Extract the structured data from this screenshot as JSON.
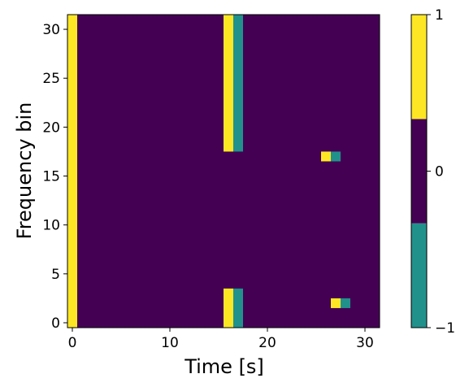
{
  "chart_data": {
    "type": "heatmap",
    "xlabel": "Time [s]",
    "ylabel": "Frequency bin",
    "x_ticks": [
      "0",
      "10",
      "20",
      "30"
    ],
    "y_ticks": [
      "0",
      "5",
      "10",
      "15",
      "20",
      "25",
      "30"
    ],
    "xlim": [
      -0.5,
      31.5
    ],
    "ylim": [
      -0.5,
      31.5
    ],
    "colorbar": {
      "ticks": [
        "−1",
        "0",
        "1"
      ],
      "levels": [
        -1,
        0,
        1
      ],
      "colors": {
        "-1": "#21918c",
        "0": "#440154",
        "1": "#fde725"
      }
    },
    "default_value": 0,
    "cells": [
      {
        "x": 0,
        "y_from": 0,
        "y_to": 31,
        "value": 1
      },
      {
        "x": 16,
        "y_from": 0,
        "y_to": 3,
        "value": 1
      },
      {
        "x": 17,
        "y_from": 0,
        "y_to": 3,
        "value": -1
      },
      {
        "x": 16,
        "y_from": 18,
        "y_to": 31,
        "value": 1
      },
      {
        "x": 17,
        "y_from": 18,
        "y_to": 31,
        "value": -1
      },
      {
        "x": 26,
        "y_from": 17,
        "y_to": 17,
        "value": 1
      },
      {
        "x": 27,
        "y_from": 17,
        "y_to": 17,
        "value": -1
      },
      {
        "x": 27,
        "y_from": 2,
        "y_to": 2,
        "value": 1
      },
      {
        "x": 28,
        "y_from": 2,
        "y_to": 2,
        "value": -1
      }
    ]
  }
}
